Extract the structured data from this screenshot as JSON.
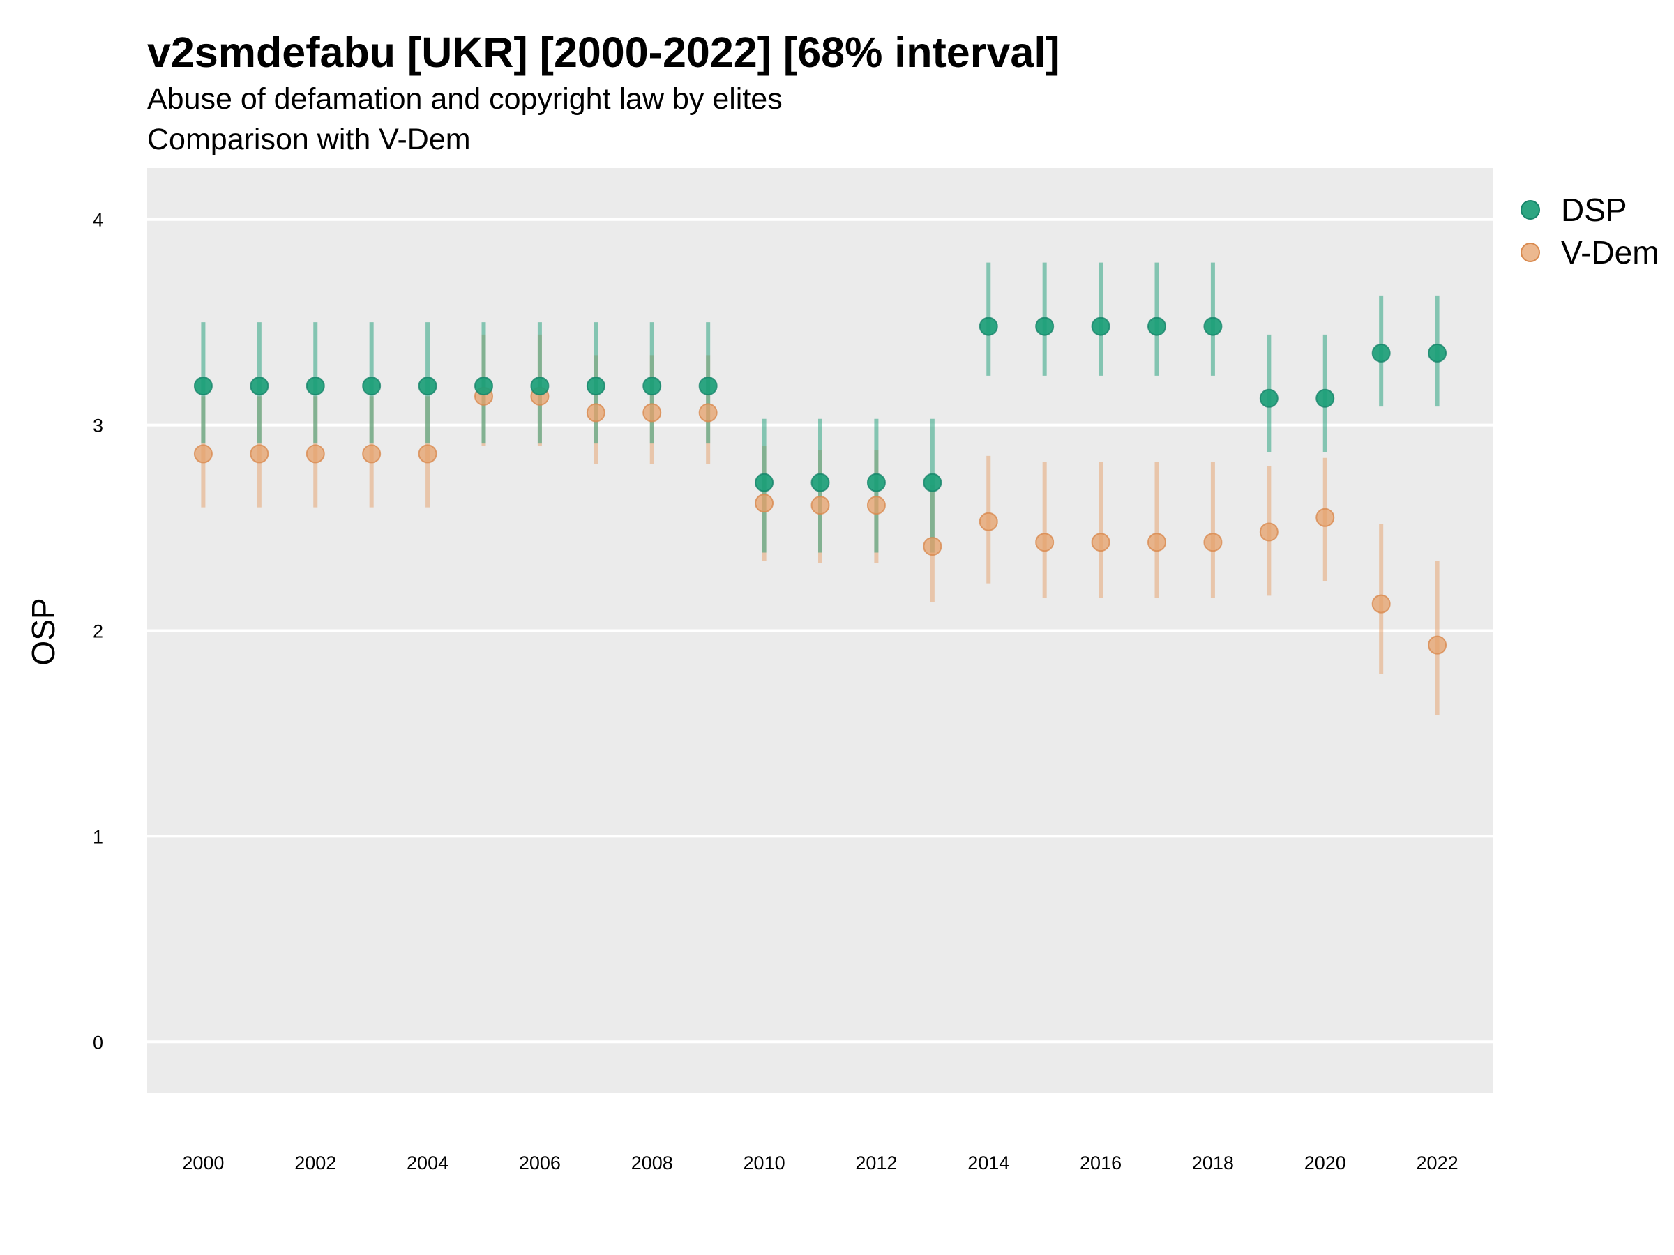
{
  "chart_data": {
    "type": "scatter",
    "title": "v2smdefabu [UKR] [2000-2022] [68% interval]",
    "subtitle_lines": [
      "Abuse of defamation and copyright law by elites",
      "Comparison with V-Dem"
    ],
    "ylabel": "OSP",
    "xlabel": "",
    "ylim": [
      -0.25,
      4.25
    ],
    "y_ticks": [
      0,
      1,
      2,
      3,
      4
    ],
    "x_ticks": [
      2000,
      2002,
      2004,
      2006,
      2008,
      2010,
      2012,
      2014,
      2016,
      2018,
      2020,
      2022
    ],
    "xlim": [
      1999,
      2023
    ],
    "grid": true,
    "legend_position": "right",
    "series": [
      {
        "name": "DSP",
        "color": "#1b9e77",
        "x": [
          2000,
          2001,
          2002,
          2003,
          2004,
          2005,
          2006,
          2007,
          2008,
          2009,
          2010,
          2011,
          2012,
          2013,
          2014,
          2015,
          2016,
          2017,
          2018,
          2019,
          2020,
          2021,
          2022
        ],
        "y": [
          3.19,
          3.19,
          3.19,
          3.19,
          3.19,
          3.19,
          3.19,
          3.19,
          3.19,
          3.19,
          2.72,
          2.72,
          2.72,
          2.72,
          3.48,
          3.48,
          3.48,
          3.48,
          3.48,
          3.13,
          3.13,
          3.35,
          3.35
        ],
        "lower": [
          2.91,
          2.91,
          2.91,
          2.91,
          2.91,
          2.91,
          2.91,
          2.91,
          2.91,
          2.91,
          2.38,
          2.38,
          2.38,
          2.38,
          3.24,
          3.24,
          3.24,
          3.24,
          3.24,
          2.87,
          2.87,
          3.09,
          3.09
        ],
        "upper": [
          3.5,
          3.5,
          3.5,
          3.5,
          3.5,
          3.5,
          3.5,
          3.5,
          3.5,
          3.5,
          3.03,
          3.03,
          3.03,
          3.03,
          3.79,
          3.79,
          3.79,
          3.79,
          3.79,
          3.44,
          3.44,
          3.63,
          3.63
        ]
      },
      {
        "name": "V-Dem",
        "color": "#e6a06a",
        "x": [
          2000,
          2001,
          2002,
          2003,
          2004,
          2005,
          2006,
          2007,
          2008,
          2009,
          2010,
          2011,
          2012,
          2013,
          2014,
          2015,
          2016,
          2017,
          2018,
          2019,
          2020,
          2021,
          2022
        ],
        "y": [
          2.86,
          2.86,
          2.86,
          2.86,
          2.86,
          3.14,
          3.14,
          3.06,
          3.06,
          3.06,
          2.62,
          2.61,
          2.61,
          2.41,
          2.53,
          2.43,
          2.43,
          2.43,
          2.43,
          2.48,
          2.55,
          2.13,
          1.93
        ],
        "lower": [
          2.6,
          2.6,
          2.6,
          2.6,
          2.6,
          2.9,
          2.9,
          2.81,
          2.81,
          2.81,
          2.34,
          2.33,
          2.33,
          2.14,
          2.23,
          2.16,
          2.16,
          2.16,
          2.16,
          2.17,
          2.24,
          1.79,
          1.59
        ],
        "upper": [
          3.14,
          3.14,
          3.14,
          3.14,
          3.14,
          3.44,
          3.44,
          3.34,
          3.34,
          3.34,
          2.9,
          2.88,
          2.88,
          2.71,
          2.85,
          2.82,
          2.82,
          2.82,
          2.82,
          2.8,
          2.84,
          2.52,
          2.34
        ]
      }
    ]
  }
}
